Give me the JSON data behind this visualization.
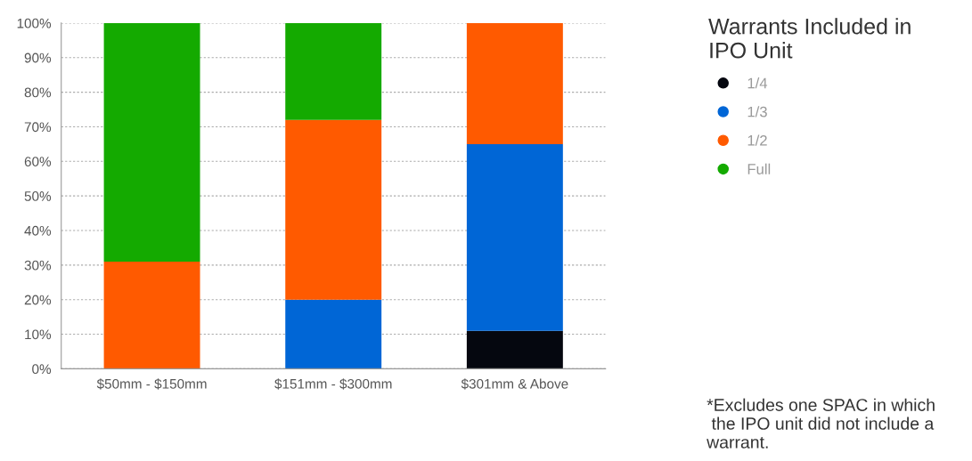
{
  "chart_data": {
    "type": "bar",
    "stacked": true,
    "categories": [
      "$50mm - $150mm",
      "$151mm - $300mm",
      "$301mm & Above"
    ],
    "series": [
      {
        "name": "1/4",
        "color": "#05070f",
        "values": [
          0,
          0,
          11
        ]
      },
      {
        "name": "1/3",
        "color": "#0066d6",
        "values": [
          0,
          20,
          54
        ]
      },
      {
        "name": "1/2",
        "color": "#ff5a00",
        "values": [
          31,
          52,
          35
        ]
      },
      {
        "name": "Full",
        "color": "#14aa00",
        "values": [
          69,
          28,
          0
        ]
      }
    ],
    "ylim": [
      0,
      100
    ],
    "yticks": [
      {
        "value": 0,
        "label": "0%"
      },
      {
        "value": 10,
        "label": "10%"
      },
      {
        "value": 20,
        "label": "20%"
      },
      {
        "value": 30,
        "label": "30%"
      },
      {
        "value": 40,
        "label": "40%"
      },
      {
        "value": 50,
        "label": "50%"
      },
      {
        "value": 60,
        "label": "60%"
      },
      {
        "value": 70,
        "label": "70%"
      },
      {
        "value": 80,
        "label": "80%"
      },
      {
        "value": 90,
        "label": "90%"
      },
      {
        "value": 100,
        "label": "100%"
      }
    ],
    "grid": "y",
    "legend": "right",
    "marker": "circle",
    "legend_title": "Warrants Included in\nIPO Unit",
    "annotations": [
      "*Excludes one SPAC in which\n the IPO unit did not include a\nwarrant."
    ]
  }
}
